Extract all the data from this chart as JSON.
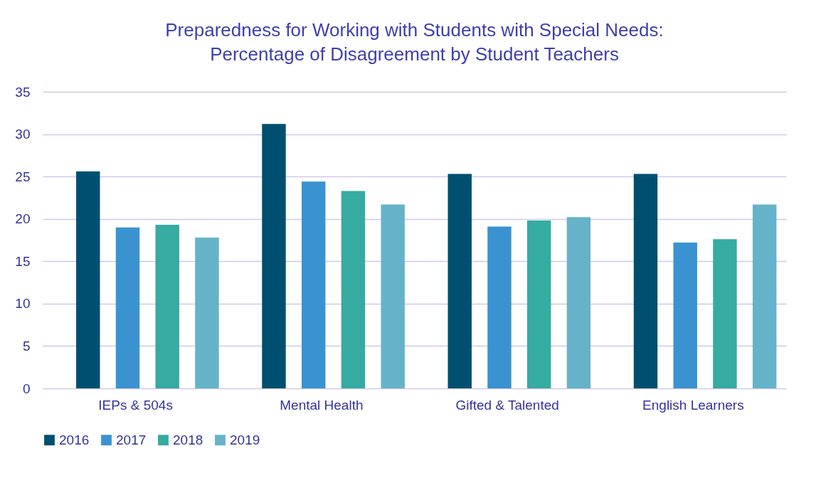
{
  "chart_data": {
    "type": "bar",
    "title": [
      "Preparedness for Working with Students with Special Needs:",
      "Percentage of Disagreement by Student Teachers"
    ],
    "categories": [
      "IEPs & 504s",
      "Mental Health",
      "Gifted & Talented",
      "English Learners"
    ],
    "series": [
      {
        "name": "2016",
        "color": "#004f71",
        "values": [
          25.6,
          31.2,
          25.3,
          25.3
        ]
      },
      {
        "name": "2017",
        "color": "#3a93d0",
        "values": [
          19.0,
          24.4,
          19.1,
          17.2
        ]
      },
      {
        "name": "2018",
        "color": "#35aba1",
        "values": [
          19.3,
          23.3,
          19.8,
          17.6
        ]
      },
      {
        "name": "2019",
        "color": "#66b3c9",
        "values": [
          17.8,
          21.7,
          20.2,
          21.7
        ]
      }
    ],
    "ylim": [
      0,
      35
    ],
    "yticks": [
      0,
      5,
      10,
      15,
      20,
      25,
      30,
      35
    ],
    "grid": "y",
    "legend": "bottom"
  }
}
